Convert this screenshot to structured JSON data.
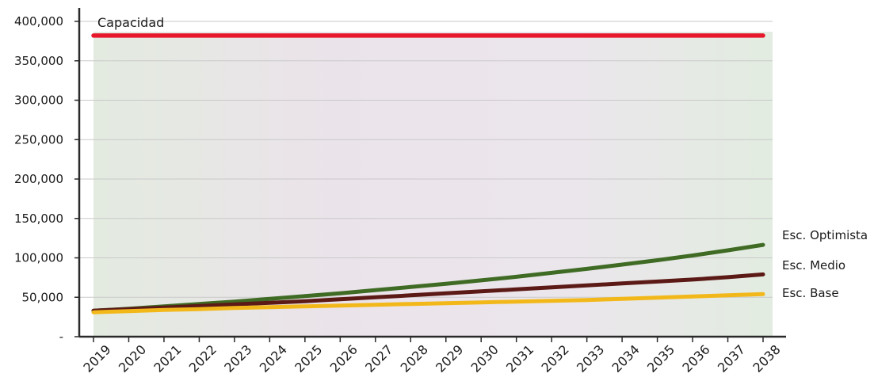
{
  "chart_data": {
    "type": "line",
    "title": "",
    "xlabel": "",
    "ylabel": "",
    "categories": [
      "2019",
      "2020",
      "2021",
      "2022",
      "2023",
      "2024",
      "2025",
      "2026",
      "2027",
      "2028",
      "2029",
      "2030",
      "2031",
      "2032",
      "2033",
      "2034",
      "2035",
      "2036",
      "2037",
      "2038"
    ],
    "ylim": [
      0,
      400000
    ],
    "yticks": [
      0,
      50000,
      100000,
      150000,
      200000,
      250000,
      300000,
      350000,
      400000
    ],
    "ytick_labels": [
      "-",
      "50,000",
      "100,000",
      "150,000",
      "200,000",
      "250,000",
      "300,000",
      "350,000",
      "400,000"
    ],
    "grid": true,
    "series": [
      {
        "name": "Capacidad",
        "color": "#e8182c",
        "values": [
          382000,
          382000,
          382000,
          382000,
          382000,
          382000,
          382000,
          382000,
          382000,
          382000,
          382000,
          382000,
          382000,
          382000,
          382000,
          382000,
          382000,
          382000,
          382000,
          382000
        ]
      },
      {
        "name": "Esc. Optimista",
        "color": "#3f6b24",
        "values": [
          33000,
          35500,
          38500,
          41500,
          44500,
          48000,
          51500,
          55000,
          59000,
          63000,
          67000,
          71500,
          76000,
          81000,
          86000,
          91500,
          97000,
          103000,
          109500,
          116500
        ]
      },
      {
        "name": "Esc. Medio",
        "color": "#5c1a16",
        "values": [
          33000,
          35000,
          37000,
          39000,
          41000,
          43000,
          45000,
          47500,
          50000,
          52500,
          55000,
          57500,
          60000,
          62500,
          65000,
          67500,
          70000,
          72500,
          75500,
          79000
        ]
      },
      {
        "name": "Esc. Base",
        "color": "#f2b81a",
        "values": [
          31000,
          32500,
          34000,
          35000,
          36500,
          37500,
          38500,
          39500,
          40500,
          41500,
          42500,
          43500,
          44500,
          45500,
          46500,
          48000,
          49500,
          51000,
          52500,
          54000
        ]
      }
    ]
  }
}
